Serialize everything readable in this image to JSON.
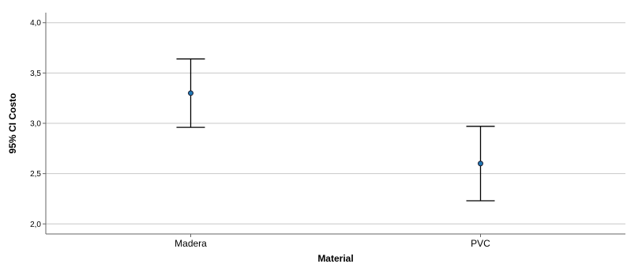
{
  "chart_data": {
    "type": "errorbar",
    "xlabel": "Material",
    "ylabel": "95% CI Costo",
    "categories": [
      "Madera",
      "PVC"
    ],
    "series": [
      {
        "means": [
          3.3,
          2.6
        ],
        "lower": [
          2.96,
          2.23
        ],
        "upper": [
          3.64,
          2.97
        ]
      }
    ],
    "ylim": [
      1.9,
      4.1
    ],
    "yticks": [
      2.0,
      2.5,
      3.0,
      3.5,
      4.0
    ],
    "ytick_labels": [
      "2,0",
      "2,5",
      "3,0",
      "3,5",
      "4,0"
    ],
    "grid": "horizontal",
    "legend": "none"
  },
  "colors": {
    "point_fill": "#1f77b4",
    "point_stroke": "#1a1a2e",
    "errorbar": "#000000",
    "grid": "#c8c8c8",
    "axis": "#666666"
  }
}
